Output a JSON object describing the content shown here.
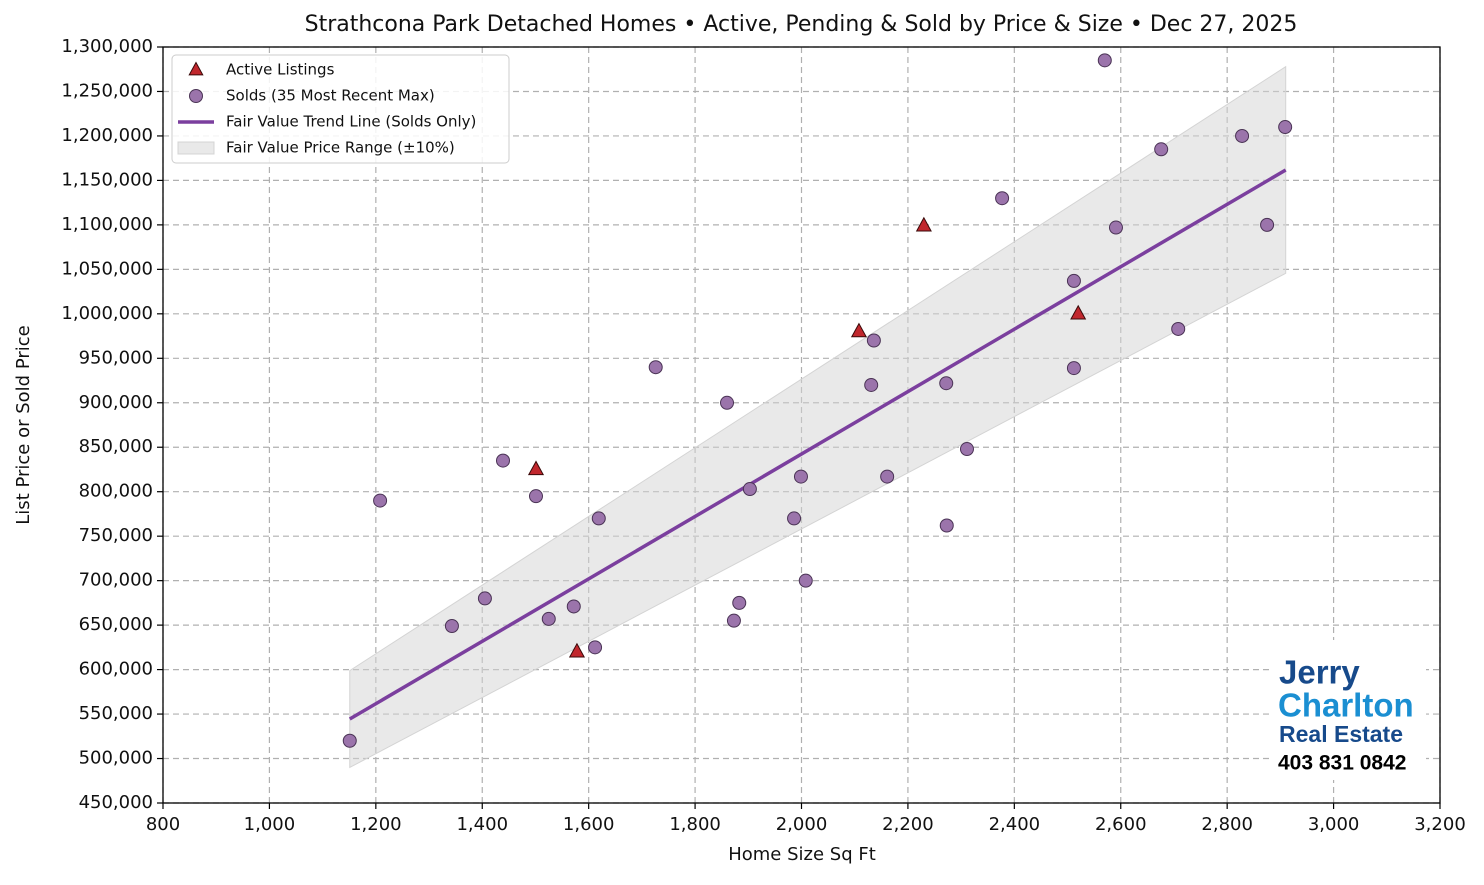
{
  "chart_data": {
    "type": "scatter",
    "title": "Strathcona Park Detached Homes • Active, Pending & Sold by Price & Size • Dec 27, 2025",
    "x_label": "Home Size Sq Ft",
    "y_label": "List Price or Sold Price",
    "xlim": [
      800,
      3200
    ],
    "ylim": [
      450000,
      1300000
    ],
    "xticks": [
      800,
      {
        "value": 1000,
        "label": "1,000"
      },
      {
        "value": 1200,
        "label": "1,200"
      },
      {
        "value": 1400,
        "label": "1,400"
      },
      {
        "value": 1600,
        "label": "1,600"
      },
      {
        "value": 1800,
        "label": "1,800"
      },
      {
        "value": 2000,
        "label": "2,000"
      },
      {
        "value": 2200,
        "label": "2,200"
      },
      {
        "value": 2400,
        "label": "2,400"
      },
      {
        "value": 2600,
        "label": "2,600"
      },
      {
        "value": 2800,
        "label": "2,800"
      },
      {
        "value": 3000,
        "label": "3,000"
      },
      {
        "value": 3200,
        "label": "3,200"
      }
    ],
    "yticks": [
      {
        "value": 450000,
        "label": "450,000"
      },
      {
        "value": 500000,
        "label": "500,000"
      },
      {
        "value": 550000,
        "label": "550,000"
      },
      {
        "value": 600000,
        "label": "600,000"
      },
      {
        "value": 650000,
        "label": "650,000"
      },
      {
        "value": 700000,
        "label": "700,000"
      },
      {
        "value": 750000,
        "label": "750,000"
      },
      {
        "value": 800000,
        "label": "800,000"
      },
      {
        "value": 850000,
        "label": "850,000"
      },
      {
        "value": 900000,
        "label": "900,000"
      },
      {
        "value": 950000,
        "label": "950,000"
      },
      {
        "value": 1000000,
        "label": "1,000,000"
      },
      {
        "value": 1050000,
        "label": "1,050,000"
      },
      {
        "value": 1100000,
        "label": "1,100,000"
      },
      {
        "value": 1150000,
        "label": "1,150,000"
      },
      {
        "value": 1200000,
        "label": "1,200,000"
      },
      {
        "value": 1250000,
        "label": "1,250,000"
      },
      {
        "value": 1300000,
        "label": "1,300,000"
      }
    ],
    "grid": true,
    "legend": "upper-left",
    "series": [
      {
        "name": "Active Listings",
        "marker": "triangle",
        "color": "#c1272d",
        "x": [
          1501,
          1578,
          2108,
          2230,
          2520
        ],
        "values": [
          825000,
          620000,
          980000,
          1099000,
          1000000
        ]
      },
      {
        "name": "Solds (35 Most Recent Max)",
        "marker": "circle",
        "color": "#9b74ab",
        "x": [
          1151,
          1208,
          1343,
          1405,
          1439,
          1501,
          1525,
          1572,
          1612,
          1619,
          1726,
          1860,
          1873,
          1883,
          1903,
          1986,
          1999,
          2008,
          2131,
          2136,
          2161,
          2272,
          2273,
          2311,
          2377,
          2512,
          2512,
          2570,
          2591,
          2676,
          2708,
          2828,
          2875,
          2909
        ],
        "values": [
          520000,
          790000,
          649000,
          680000,
          835000,
          795000,
          657000,
          671000,
          625000,
          770000,
          940000,
          900000,
          655000,
          675000,
          803000,
          770000,
          817000,
          700000,
          920000,
          970000,
          817000,
          922000,
          762000,
          848000,
          1130000,
          939000,
          1037000,
          1285000,
          1097000,
          1185000,
          983000,
          1200000,
          1100000,
          1210000
        ]
      },
      {
        "name": "Fair Value Trend Line (Solds Only)",
        "marker": "line",
        "color": "#7b3f9e",
        "x": [
          1151,
          2910
        ],
        "values": [
          544400,
          1161700
        ]
      },
      {
        "name": "Fair Value Price Range (±10%)",
        "marker": "band",
        "color": "#d4d4d4",
        "x": [
          1151,
          2910
        ],
        "upper": [
          598840,
          1277870
        ],
        "lower": [
          489960,
          1045530
        ]
      }
    ]
  },
  "logo": {
    "line1": "Jerry",
    "line2": "Charlton",
    "line3": "Real Estate",
    "phone": "403 831 0842"
  }
}
